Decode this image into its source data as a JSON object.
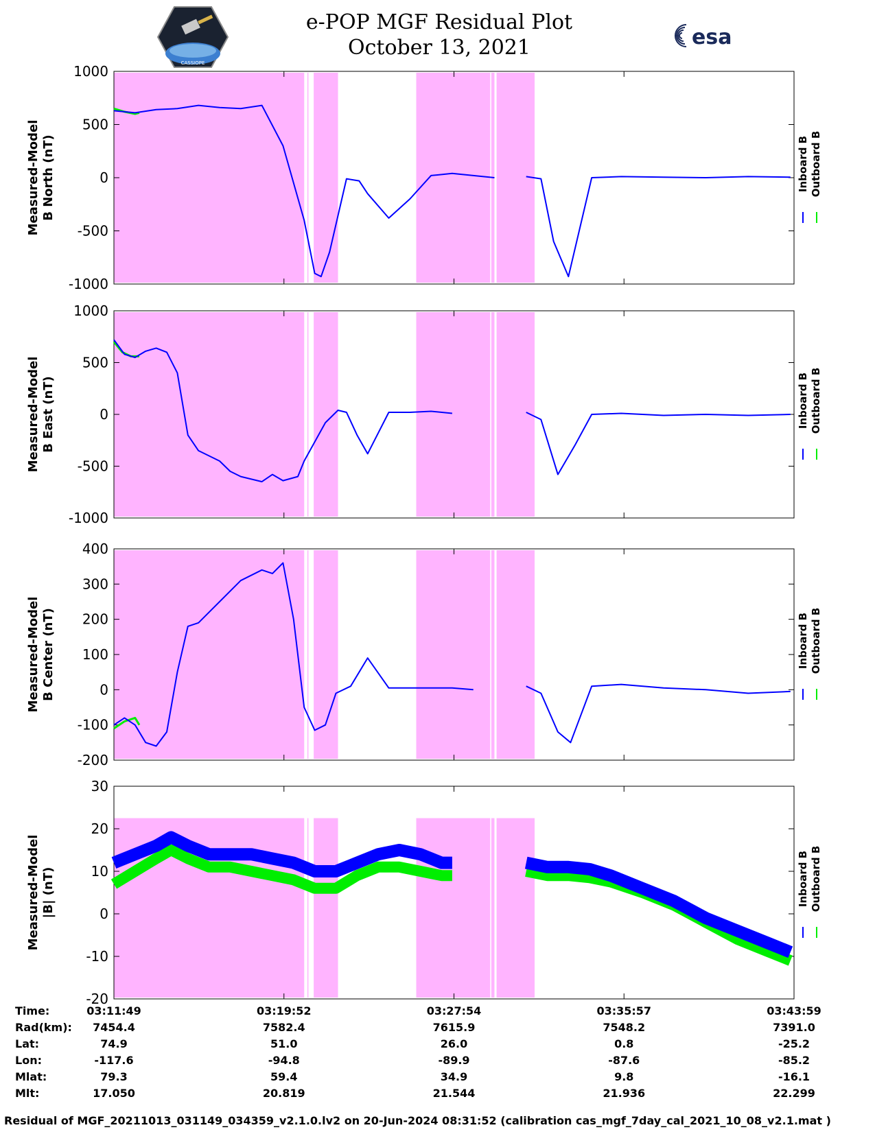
{
  "header": {
    "title": "e-POP MGF Residual Plot",
    "date": "October 13, 2021",
    "left_logo_text": "CASSIOPE",
    "right_logo_text": "esa"
  },
  "footer_text": "Residual of MGF_20211013_031149_034359_v2.1.0.lv2 on 20-Jun-2024 08:31:52 (calibration cas_mgf_7day_cal_2021_10_08_v2.1.mat )",
  "colors": {
    "inboard": "#0000ff",
    "outboard": "#00ee00",
    "shade": "#ffb4ff"
  },
  "info_table": {
    "row_labels": [
      "Time:",
      "Rad(km):",
      "Lat:",
      "Lon:",
      "Mlat:",
      "Mlt:"
    ],
    "columns": [
      [
        "03:11:49",
        "7454.4",
        "74.9",
        "-117.6",
        "79.3",
        "17.050"
      ],
      [
        "03:19:52",
        "7582.4",
        "51.0",
        "-94.8",
        "59.4",
        "20.819"
      ],
      [
        "03:27:54",
        "7615.9",
        "26.0",
        "-89.9",
        "34.9",
        "21.544"
      ],
      [
        "03:35:57",
        "7548.2",
        "0.8",
        "-87.6",
        "9.8",
        "21.936"
      ],
      [
        "03:43:59",
        "7391.0",
        "-25.2",
        "-85.2",
        "-16.1",
        "22.299"
      ]
    ]
  },
  "chart_data": [
    {
      "type": "line",
      "ylabel_line1": "Measured-Model",
      "ylabel_line2": "B North (nT)",
      "ylim": [
        -1000,
        1000
      ],
      "yticks": [
        "1000",
        "500",
        "0",
        "-500",
        "-1000"
      ],
      "ytick_values": [
        1000,
        500,
        0,
        -500,
        -1000
      ],
      "legend": [
        "Inboard B",
        "Outboard B"
      ],
      "x_minutes": [
        0,
        1,
        2,
        3,
        4,
        5,
        6,
        7,
        8,
        9,
        9.5,
        9.8,
        10.2,
        11,
        11.6,
        12,
        13,
        14,
        15,
        16,
        17,
        18,
        19,
        19.5,
        20.2,
        20.8,
        21.5,
        22.6,
        24,
        26,
        28,
        30,
        32
      ],
      "series": [
        {
          "name": "Inboard B",
          "values": [
            630,
            610,
            640,
            650,
            680,
            660,
            650,
            680,
            300,
            -400,
            -900,
            -930,
            -700,
            -10,
            -30,
            -150,
            -380,
            -200,
            20,
            40,
            20,
            0,
            null,
            10,
            -10,
            -600,
            -930,
            0,
            10,
            5,
            0,
            10,
            5
          ]
        }
      ],
      "outboard_segment": {
        "x_minutes": [
          0,
          0.5,
          1,
          1.2
        ],
        "values": [
          650,
          620,
          600,
          610
        ]
      }
    },
    {
      "type": "line",
      "ylabel_line1": "Measured-Model",
      "ylabel_line2": "B East (nT)",
      "ylim": [
        -1000,
        1000
      ],
      "yticks": [
        "1000",
        "500",
        "0",
        "-500",
        "-1000"
      ],
      "ytick_values": [
        1000,
        500,
        0,
        -500,
        -1000
      ],
      "legend": [
        "Inboard B",
        "Outboard B"
      ],
      "x_minutes": [
        0,
        0.5,
        1,
        1.5,
        2,
        2.5,
        3,
        3.5,
        4,
        5,
        5.5,
        6,
        7,
        7.5,
        8,
        8.7,
        9,
        10,
        10.6,
        11,
        11.5,
        12,
        13,
        14,
        15,
        16,
        17,
        18,
        19.5,
        20.2,
        21,
        21.8,
        22.6,
        24,
        26,
        28,
        30,
        32
      ],
      "series": [
        {
          "name": "Inboard B",
          "values": [
            720,
            580,
            550,
            610,
            640,
            600,
            400,
            -200,
            -350,
            -450,
            -550,
            -600,
            -650,
            -580,
            -640,
            -600,
            -450,
            -80,
            40,
            20,
            -200,
            -380,
            20,
            20,
            30,
            10,
            null,
            null,
            20,
            -50,
            -580,
            -300,
            0,
            10,
            -10,
            0,
            -10,
            0
          ]
        }
      ],
      "outboard_segment": {
        "x_minutes": [
          0,
          0.4,
          0.8,
          1.2
        ],
        "values": [
          700,
          600,
          560,
          560
        ]
      }
    },
    {
      "type": "line",
      "ylabel_line1": "Measured-Model",
      "ylabel_line2": "B Center (nT)",
      "ylim": [
        -200,
        400
      ],
      "yticks": [
        "400",
        "300",
        "200",
        "100",
        "0",
        "-100",
        "-200"
      ],
      "ytick_values": [
        400,
        300,
        200,
        100,
        0,
        -100,
        -200
      ],
      "legend": [
        "Inboard B",
        "Outboard B"
      ],
      "x_minutes": [
        0,
        0.5,
        1,
        1.5,
        2,
        2.5,
        3,
        3.5,
        4,
        5,
        6,
        7,
        7.5,
        8,
        8.5,
        9,
        9.5,
        10,
        10.5,
        11.2,
        12,
        13,
        14,
        15,
        16,
        17,
        18,
        19.5,
        20.2,
        21,
        21.6,
        22.6,
        24,
        26,
        28,
        30,
        32
      ],
      "series": [
        {
          "name": "Inboard B",
          "values": [
            -100,
            -80,
            -100,
            -150,
            -160,
            -120,
            50,
            180,
            190,
            250,
            310,
            340,
            330,
            360,
            200,
            -50,
            -115,
            -100,
            -10,
            10,
            90,
            5,
            5,
            5,
            5,
            0,
            null,
            10,
            -10,
            -120,
            -150,
            10,
            15,
            5,
            0,
            -10,
            -5
          ]
        }
      ],
      "outboard_segment": {
        "x_minutes": [
          0,
          0.5,
          1,
          1.2
        ],
        "values": [
          -110,
          -90,
          -80,
          -100
        ]
      }
    },
    {
      "type": "line",
      "ylabel_line1": "Measured-Model",
      "ylabel_line2": "|B| (nT)",
      "ylim": [
        -20,
        30
      ],
      "yticks": [
        "30",
        "20",
        "10",
        "0",
        "-10",
        "-20"
      ],
      "ytick_values": [
        30,
        20,
        10,
        0,
        -10,
        -20
      ],
      "legend": [
        "Inboard B",
        "Outboard B"
      ],
      "x_minutes": [
        0,
        1,
        2,
        2.7,
        3.5,
        4.5,
        5.5,
        6.5,
        7.5,
        8.5,
        9.5,
        10.5,
        11.5,
        12.5,
        13.5,
        14.5,
        15.5,
        16,
        17,
        18,
        19.5,
        20.5,
        21.5,
        22.5,
        23.5,
        25,
        26.5,
        28,
        29.5,
        31,
        32
      ],
      "series": [
        {
          "name": "Inboard B",
          "values": [
            12,
            14,
            16,
            18,
            16,
            14,
            14,
            14,
            13,
            12,
            10,
            10,
            12,
            14,
            15,
            14,
            12,
            12,
            null,
            null,
            12,
            11,
            11,
            10.5,
            9,
            6,
            3,
            -1,
            -4,
            -7,
            -9
          ]
        },
        {
          "name": "Outboard B",
          "values": [
            7,
            10,
            13,
            15,
            13,
            11,
            11,
            10,
            9,
            8,
            6,
            6,
            9,
            11,
            11,
            10,
            9,
            9,
            null,
            null,
            10,
            9,
            9,
            8.5,
            7.5,
            5,
            2,
            -2,
            -6,
            -9,
            -11
          ]
        }
      ]
    }
  ],
  "time_axis": {
    "start_label": "03:11:49",
    "end_label": "03:43:59",
    "duration_minutes": 32.17
  },
  "shaded_intervals_minutes": [
    [
      0,
      9
    ],
    [
      9.15,
      9.2
    ],
    [
      9.45,
      10.6
    ],
    [
      14.3,
      17.8
    ],
    [
      17.85,
      18.0
    ],
    [
      18.1,
      19.9
    ]
  ]
}
